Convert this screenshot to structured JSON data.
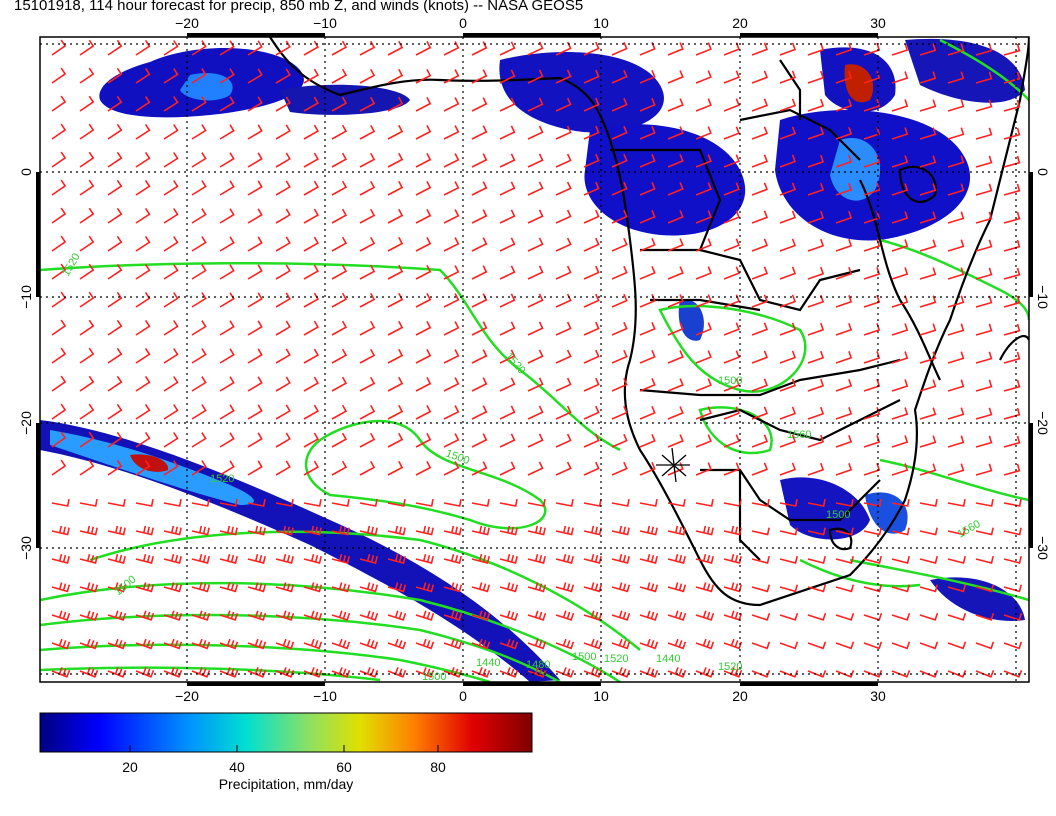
{
  "title": "15101918, 114 hour forecast for precip, 850 mb Z, and winds (knots) -- NASA GEOS5",
  "map": {
    "lon_range": [
      -30,
      41
    ],
    "lat_range": [
      -38.5,
      10
    ],
    "lon_ticks_top": [
      "−20",
      "−10",
      "0",
      "10",
      "20",
      "30"
    ],
    "lon_ticks_bottom": [
      "−20",
      "−10",
      "0",
      "10",
      "20",
      "30"
    ],
    "lat_ticks_left": [
      "0",
      "−10",
      "−20",
      "−30"
    ],
    "lat_ticks_right": [
      "0",
      "−10",
      "−20",
      "−30"
    ],
    "contour_labels": [
      "1520",
      "1520",
      "1500",
      "1500",
      "1520",
      "1500",
      "1560",
      "1440",
      "1480",
      "1500",
      "1520",
      "1520",
      "1440",
      "1500",
      "1560",
      "1500"
    ],
    "colors": {
      "coast": "#000000",
      "wind_barb": "#ff2020",
      "contour": "#22dd22",
      "grid": "#000000"
    }
  },
  "colorbar": {
    "ticks": [
      "20",
      "40",
      "60",
      "80"
    ],
    "label": "Precipitation, mm/day"
  }
}
